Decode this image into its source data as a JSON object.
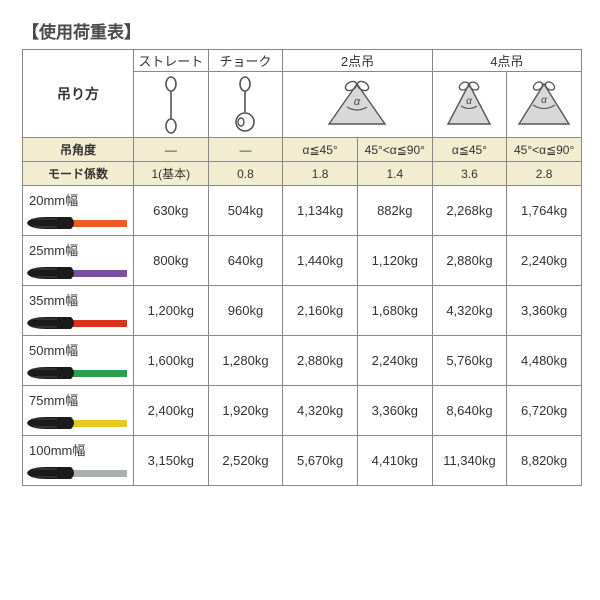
{
  "title": "【使用荷重表】",
  "header": {
    "hanging_method": "吊り方",
    "methods": [
      "ストレート",
      "チョーク",
      "2点吊",
      "4点吊"
    ]
  },
  "row_labels": {
    "angle": "吊角度",
    "coef": "モード係数"
  },
  "angles": [
    "―",
    "―",
    "α≦45°",
    "45°<α≦90°",
    "α≦45°",
    "45°<α≦90°"
  ],
  "coefs": [
    "1(基本)",
    "0.8",
    "1.8",
    "1.4",
    "3.6",
    "2.8"
  ],
  "sizes": [
    {
      "label": "20mm幅",
      "color": "#f05a28",
      "cells": [
        "630kg",
        "504kg",
        "1,134kg",
        "882kg",
        "2,268kg",
        "1,764kg"
      ]
    },
    {
      "label": "25mm幅",
      "color": "#7a4fa0",
      "cells": [
        "800kg",
        "640kg",
        "1,440kg",
        "1,120kg",
        "2,880kg",
        "2,240kg"
      ]
    },
    {
      "label": "35mm幅",
      "color": "#d9321f",
      "cells": [
        "1,200kg",
        "960kg",
        "2,160kg",
        "1,680kg",
        "4,320kg",
        "3,360kg"
      ]
    },
    {
      "label": "50mm幅",
      "color": "#2e9e4b",
      "cells": [
        "1,600kg",
        "1,280kg",
        "2,880kg",
        "2,240kg",
        "5,760kg",
        "4,480kg"
      ]
    },
    {
      "label": "75mm幅",
      "color": "#e6c81e",
      "cells": [
        "2,400kg",
        "1,920kg",
        "4,320kg",
        "3,360kg",
        "8,640kg",
        "6,720kg"
      ]
    },
    {
      "label": "100mm幅",
      "color": "#aab0b0",
      "cells": [
        "3,150kg",
        "2,520kg",
        "5,670kg",
        "4,410kg",
        "11,340kg",
        "8,820kg"
      ]
    }
  ],
  "columns_width": {
    "label": 110,
    "data": 74
  },
  "diagram_stroke": "#555",
  "diagram_fill": "#ccc"
}
